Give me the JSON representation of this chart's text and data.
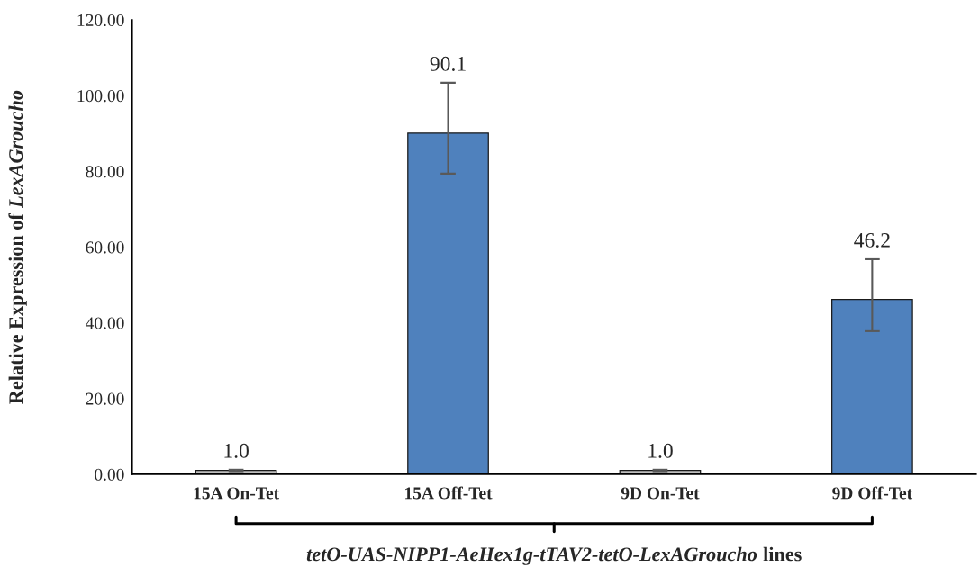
{
  "chart_data": {
    "type": "bar",
    "ylabel": "Relative Expression of LexAGroucho",
    "xlabel": "tetO-UAS-NIPP1-AeHex1g-tTAV2-tetO-LexAGroucho lines",
    "categories": [
      "15A On-Tet",
      "15A Off-Tet",
      "9D On-Tet",
      "9D Off-Tet"
    ],
    "values": [
      1.0,
      90.1,
      1.0,
      46.2
    ],
    "colors": [
      "#bfbfbf",
      "#4f81bd",
      "#bfbfbf",
      "#4f81bd"
    ],
    "errors": [
      0.2,
      [
        79.4,
        103.4
      ],
      0.2,
      [
        37.8,
        56.8
      ]
    ],
    "value_labels": [
      "1.0",
      "90.1",
      "1.0",
      "46.2"
    ],
    "ylim": [
      0,
      120
    ],
    "yticks": [
      {
        "value": 0,
        "label": "0.00"
      },
      {
        "value": 20,
        "label": "20.00"
      },
      {
        "value": 40,
        "label": "40.00"
      },
      {
        "value": 60,
        "label": "60.00"
      },
      {
        "value": 80,
        "label": "80.00"
      },
      {
        "value": 100,
        "label": "100.00"
      },
      {
        "value": 120,
        "label": "120.00"
      }
    ],
    "grid": false,
    "legend": false
  }
}
